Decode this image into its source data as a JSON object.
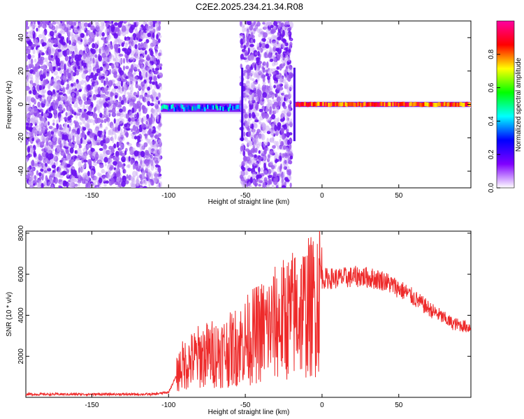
{
  "title": "C2E2.2025.234.21.34.R08",
  "chart_data": [
    {
      "type": "heatmap",
      "name": "spectrogram",
      "xlabel": "Height of straight line (km)",
      "ylabel": "Frequency (Hz)",
      "xlim": [
        -193,
        97
      ],
      "ylim": [
        -50,
        50
      ],
      "xticks": [
        -150,
        -100,
        -50,
        0,
        50
      ],
      "yticks": [
        -40,
        -20,
        0,
        20,
        40
      ],
      "colorbar": {
        "label": "Normalized spectral amplitude",
        "range": [
          0,
          1
        ],
        "ticks": [
          0.0,
          0.2,
          0.4,
          0.6,
          0.8
        ],
        "colors": [
          "#ffffff",
          "#8000ff",
          "#0000ff",
          "#00ffff",
          "#00ff00",
          "#ffff00",
          "#ff0000",
          "#ff00a0"
        ]
      },
      "regions": [
        {
          "x_range": [
            -193,
            -105
          ],
          "description": "broadband noise"
        },
        {
          "x_range": [
            -105,
            -52
          ],
          "freq_center": -2,
          "amplitude": 0.35
        },
        {
          "x_range": [
            -53,
            -20
          ],
          "description": "broadband noise"
        },
        {
          "x_range": [
            -18,
            97
          ],
          "freq_center": 0,
          "amplitude": 0.9
        }
      ]
    },
    {
      "type": "line",
      "name": "snr",
      "xlabel": "Height of straight line (km)",
      "ylabel": "SNR (10 * v/v)",
      "xlim": [
        -193,
        97
      ],
      "ylim": [
        0,
        8100
      ],
      "xticks": [
        -150,
        -100,
        -50,
        0,
        50
      ],
      "yticks": [
        2000,
        4000,
        6000,
        8000
      ],
      "color": "#ee2a2a",
      "envelope": [
        {
          "x": -193,
          "y": 150
        },
        {
          "x": -110,
          "y": 150
        },
        {
          "x": -100,
          "y": 250
        },
        {
          "x": -92,
          "y": 1500
        },
        {
          "x": -80,
          "y": 2000
        },
        {
          "x": -60,
          "y": 2300
        },
        {
          "x": -40,
          "y": 3200
        },
        {
          "x": -20,
          "y": 4000
        },
        {
          "x": -5,
          "y": 4500
        },
        {
          "x": 0,
          "y": 5800
        },
        {
          "x": 10,
          "y": 5800
        },
        {
          "x": 25,
          "y": 5900
        },
        {
          "x": 40,
          "y": 5700
        },
        {
          "x": 55,
          "y": 5100
        },
        {
          "x": 70,
          "y": 4300
        },
        {
          "x": 85,
          "y": 3600
        },
        {
          "x": 97,
          "y": 3400
        }
      ]
    }
  ]
}
